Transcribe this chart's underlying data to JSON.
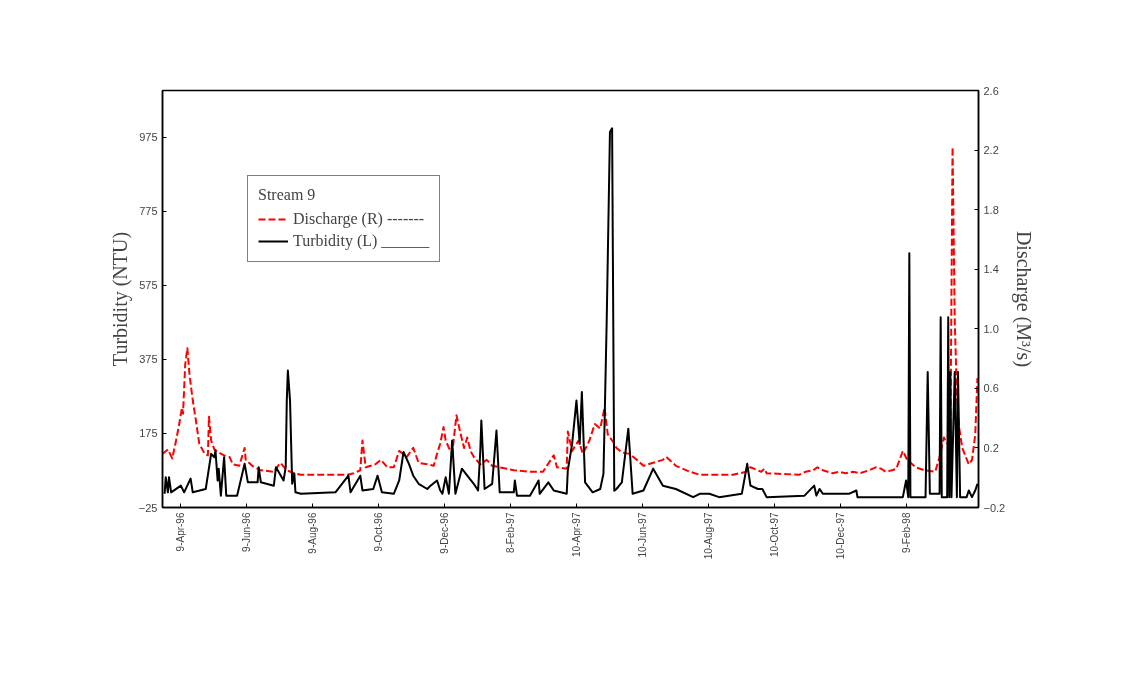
{
  "chart_data": {
    "type": "line",
    "ylabel": "Turbidity (NTU)",
    "y2label": "Discharge (M³/s)",
    "legend_title": "Stream 9",
    "legend": "top left",
    "grid": false,
    "xlim": [
      "1996-03-23",
      "1998-04-17"
    ],
    "xticks": [
      {
        "value": "1996-04-09",
        "label": "9-Apr-96"
      },
      {
        "value": "1996-06-09",
        "label": "9-Jun-96"
      },
      {
        "value": "1996-08-09",
        "label": "9-Aug-96"
      },
      {
        "value": "1996-10-09",
        "label": "9-Oct-96"
      },
      {
        "value": "1996-12-09",
        "label": "9-Dec-96"
      },
      {
        "value": "1997-02-08",
        "label": "8-Feb-97"
      },
      {
        "value": "1997-04-10",
        "label": "10-Apr-97"
      },
      {
        "value": "1997-06-10",
        "label": "10-Jun-97"
      },
      {
        "value": "1997-08-10",
        "label": "10-Aug-97"
      },
      {
        "value": "1997-10-10",
        "label": "10-Oct-97"
      },
      {
        "value": "1997-12-10",
        "label": "10-Dec-97"
      },
      {
        "value": "1998-02-09",
        "label": "9-Feb-98"
      }
    ],
    "ylim": [
      -25,
      1102
    ],
    "yticks": [
      -25,
      175,
      375,
      575,
      775,
      975
    ],
    "y2lim": [
      -0.2,
      2.6
    ],
    "y2ticks": [
      -0.2,
      0.2,
      0.6,
      {
        "value": 1.0,
        "label": "1.0"
      },
      1.4,
      1.8,
      2.2,
      2.6
    ],
    "series": [
      {
        "name": "Discharge (R) -------",
        "color": "#ff0000",
        "axis": "y2",
        "line_style": "dashed",
        "x": [
          "1996-03-23",
          "1996-03-28",
          "1996-04-01",
          "1996-04-04",
          "1996-04-07",
          "1996-04-10",
          "1996-04-11",
          "1996-04-13",
          "1996-04-15",
          "1996-04-17",
          "1996-04-20",
          "1996-04-23",
          "1996-04-26",
          "1996-05-01",
          "1996-05-04",
          "1996-05-05",
          "1996-05-07",
          "1996-05-10",
          "1996-05-14",
          "1996-05-19",
          "1996-05-24",
          "1996-05-27",
          "1996-06-02",
          "1996-06-07",
          "1996-06-08",
          "1996-06-14",
          "1996-06-22",
          "1996-07-04",
          "1996-07-10",
          "1996-07-16",
          "1996-07-23",
          "1996-07-29",
          "1996-09-10",
          "1996-09-16",
          "1996-09-22",
          "1996-09-24",
          "1996-09-27",
          "1996-10-06",
          "1996-10-11",
          "1996-10-17",
          "1996-10-23",
          "1996-10-28",
          "1996-11-04",
          "1996-11-10",
          "1996-11-15",
          "1996-11-23",
          "1996-11-29",
          "1996-12-02",
          "1996-12-05",
          "1996-12-08",
          "1996-12-10",
          "1996-12-13",
          "1996-12-16",
          "1996-12-20",
          "1996-12-23",
          "1996-12-27",
          "1996-12-30",
          "1997-01-02",
          "1997-01-05",
          "1997-01-11",
          "1997-01-17",
          "1997-01-22",
          "1997-01-29",
          "1997-02-11",
          "1997-02-26",
          "1997-03-10",
          "1997-03-20",
          "1997-03-23",
          "1997-04-01",
          "1997-04-02",
          "1997-04-06",
          "1997-04-12",
          "1997-04-16",
          "1997-04-22",
          "1997-04-27",
          "1997-05-02",
          "1997-05-06",
          "1997-05-09",
          "1997-05-14",
          "1997-05-17",
          "1997-05-22",
          "1997-05-29",
          "1997-06-05",
          "1997-06-11",
          "1997-06-29",
          "1997-07-02",
          "1997-07-11",
          "1997-07-24",
          "1997-08-02",
          "1997-09-02",
          "1997-09-14",
          "1997-09-18",
          "1997-09-28",
          "1997-10-01",
          "1997-10-03",
          "1997-11-02",
          "1997-11-08",
          "1997-11-15",
          "1997-11-19",
          "1997-11-24",
          "1997-12-03",
          "1997-12-09",
          "1997-12-15",
          "1997-12-22",
          "1997-12-28",
          "1998-01-06",
          "1998-01-12",
          "1998-01-17",
          "1998-01-21",
          "1998-01-27",
          "1998-01-31",
          "1998-02-06",
          "1998-02-10",
          "1998-02-18",
          "1998-02-26",
          "1998-03-08",
          "1998-03-12",
          "1998-03-16",
          "1998-03-19",
          "1998-03-22",
          "1998-03-24",
          "1998-03-26",
          "1998-03-28",
          "1998-03-30",
          "1998-04-02",
          "1998-04-08",
          "1998-04-11",
          "1998-04-14",
          "1998-04-16"
        ],
        "values": [
          0.16,
          0.19,
          0.13,
          0.23,
          0.34,
          0.47,
          0.43,
          0.76,
          0.87,
          0.69,
          0.52,
          0.38,
          0.23,
          0.16,
          0.15,
          0.41,
          0.25,
          0.19,
          0.17,
          0.15,
          0.14,
          0.09,
          0.08,
          0.2,
          0.12,
          0.08,
          0.05,
          0.04,
          0.1,
          0.05,
          0.03,
          0.02,
          0.02,
          0.03,
          0.05,
          0.25,
          0.07,
          0.09,
          0.12,
          0.07,
          0.07,
          0.18,
          0.14,
          0.2,
          0.1,
          0.09,
          0.08,
          0.16,
          0.23,
          0.34,
          0.25,
          0.2,
          0.16,
          0.42,
          0.32,
          0.2,
          0.27,
          0.18,
          0.14,
          0.09,
          0.12,
          0.08,
          0.07,
          0.05,
          0.04,
          0.04,
          0.15,
          0.07,
          0.06,
          0.31,
          0.18,
          0.25,
          0.16,
          0.25,
          0.36,
          0.33,
          0.47,
          0.29,
          0.24,
          0.2,
          0.17,
          0.16,
          0.12,
          0.08,
          0.12,
          0.14,
          0.08,
          0.04,
          0.02,
          0.02,
          0.04,
          0.07,
          0.04,
          0.06,
          0.03,
          0.02,
          0.04,
          0.05,
          0.07,
          0.05,
          0.03,
          0.04,
          0.03,
          0.04,
          0.03,
          0.05,
          0.07,
          0.06,
          0.04,
          0.05,
          0.06,
          0.18,
          0.12,
          0.07,
          0.05,
          0.04,
          0.14,
          0.27,
          0.23,
          0.25,
          2.22,
          1.06,
          0.56,
          0.34,
          0.2,
          0.09,
          0.12,
          0.29,
          0.67
        ]
      },
      {
        "name": "Turbidity (L) ______",
        "color": "#000000",
        "line_style": "solid",
        "x": [
          "1996-03-25",
          "1996-03-26",
          "1996-03-28",
          "1996-03-29",
          "1996-03-31",
          "1996-04-09",
          "1996-04-12",
          "1996-04-18",
          "1996-04-20",
          "1996-05-02",
          "1996-05-07",
          "1996-05-10",
          "1996-05-11",
          "1996-05-13",
          "1996-05-14",
          "1996-05-16",
          "1996-05-19",
          "1996-05-21",
          "1996-05-31",
          "1996-06-07",
          "1996-06-10",
          "1996-06-19",
          "1996-06-20",
          "1996-06-22",
          "1996-07-04",
          "1996-07-06",
          "1996-07-13",
          "1996-07-15",
          "1996-07-16",
          "1996-07-17",
          "1996-07-19",
          "1996-07-21",
          "1996-07-23",
          "1996-07-24",
          "1996-07-29",
          "1996-08-30",
          "1996-09-11",
          "1996-09-13",
          "1996-09-22",
          "1996-09-24",
          "1996-10-04",
          "1996-10-08",
          "1996-10-12",
          "1996-10-23",
          "1996-10-28",
          "1996-11-01",
          "1996-11-06",
          "1996-11-10",
          "1996-11-15",
          "1996-11-23",
          "1996-11-26",
          "1996-12-02",
          "1996-12-05",
          "1996-12-07",
          "1996-12-10",
          "1996-12-13",
          "1996-12-16",
          "1996-12-19",
          "1996-12-25",
          "1996-12-30",
          "1997-01-05",
          "1997-01-09",
          "1997-01-11",
          "1997-01-12",
          "1997-01-15",
          "1997-01-22",
          "1997-01-26",
          "1997-01-29",
          "1997-02-11",
          "1997-02-12",
          "1997-02-14",
          "1997-02-26",
          "1997-03-06",
          "1997-03-07",
          "1997-03-15",
          "1997-03-20",
          "1997-04-01",
          "1997-04-02",
          "1997-04-06",
          "1997-04-10",
          "1997-04-13",
          "1997-04-15",
          "1997-04-18",
          "1997-04-25",
          "1997-05-02",
          "1997-05-05",
          "1997-05-06",
          "1997-05-08",
          "1997-05-11",
          "1997-05-13",
          "1997-05-15",
          "1997-05-17",
          "1997-05-22",
          "1997-05-28",
          "1997-06-01",
          "1997-06-11",
          "1997-06-20",
          "1997-06-29",
          "1997-07-11",
          "1997-07-27",
          "1997-08-02",
          "1997-08-11",
          "1997-08-20",
          "1997-09-10",
          "1997-09-15",
          "1997-09-18",
          "1997-09-25",
          "1997-09-29",
          "1997-10-03",
          "1997-11-07",
          "1997-11-16",
          "1997-11-18",
          "1997-11-21",
          "1997-11-24",
          "1997-12-18",
          "1997-12-25",
          "1997-12-26",
          "1998-02-06",
          "1998-02-09",
          "1998-02-11",
          "1998-02-12",
          "1998-02-13",
          "1998-02-27",
          "1998-03-01",
          "1998-03-03",
          "1998-03-12",
          "1998-03-13",
          "1998-03-14",
          "1998-03-19",
          "1998-03-20",
          "1998-03-21",
          "1998-03-22",
          "1998-03-23",
          "1998-03-26",
          "1998-03-28",
          "1998-03-29",
          "1998-03-31",
          "1998-04-06",
          "1998-04-08",
          "1998-04-11",
          "1998-04-14",
          "1998-04-16"
        ],
        "values": [
          12,
          57,
          16,
          57,
          16,
          34,
          16,
          53,
          16,
          25,
          120,
          111,
          129,
          48,
          80,
          7,
          111,
          7,
          7,
          93,
          43,
          43,
          84,
          43,
          34,
          84,
          48,
          84,
          264,
          345,
          264,
          39,
          66,
          16,
          12,
          16,
          61,
          16,
          61,
          21,
          25,
          61,
          16,
          12,
          48,
          125,
          93,
          61,
          39,
          25,
          34,
          48,
          21,
          12,
          57,
          12,
          156,
          12,
          80,
          61,
          39,
          21,
          125,
          210,
          25,
          39,
          183,
          16,
          16,
          48,
          7,
          7,
          48,
          12,
          43,
          21,
          12,
          75,
          147,
          264,
          147,
          287,
          43,
          16,
          25,
          66,
          200,
          480,
          990,
          1000,
          20,
          25,
          43,
          188,
          12,
          21,
          80,
          34,
          25,
          3,
          12,
          12,
          3,
          12,
          93,
          34,
          25,
          25,
          3,
          7,
          34,
          7,
          25,
          12,
          12,
          21,
          3,
          3,
          48,
          3,
          662,
          3,
          3,
          341,
          12,
          12,
          489,
          3,
          3,
          489,
          3,
          341,
          3,
          341,
          3,
          341,
          3,
          3,
          21,
          3,
          21,
          39
        ]
      }
    ]
  }
}
